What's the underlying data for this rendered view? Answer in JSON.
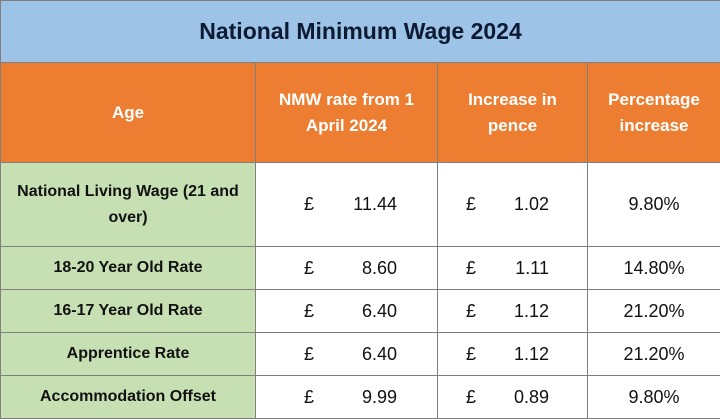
{
  "title": "National Minimum Wage 2024",
  "headers": [
    "Age",
    "NMW rate from 1 April 2024",
    "Increase in pence",
    "Percentage increase"
  ],
  "currency_symbol": "£",
  "colors": {
    "title_bg": "#9dc3e6",
    "header_bg": "#ed7d31",
    "age_bg": "#c6e0b4"
  },
  "rows": [
    {
      "age": "National Living Wage (21 and over)",
      "rate": "11.44",
      "increase": "1.02",
      "percentage": "9.80%"
    },
    {
      "age": "18-20 Year Old Rate",
      "rate": "8.60",
      "increase": "1.11",
      "percentage": "14.80%"
    },
    {
      "age": "16-17 Year Old Rate",
      "rate": "6.40",
      "increase": "1.12",
      "percentage": "21.20%"
    },
    {
      "age": "Apprentice Rate",
      "rate": "6.40",
      "increase": "1.12",
      "percentage": "21.20%"
    },
    {
      "age": "Accommodation Offset",
      "rate": "9.99",
      "increase": "0.89",
      "percentage": "9.80%"
    }
  ]
}
